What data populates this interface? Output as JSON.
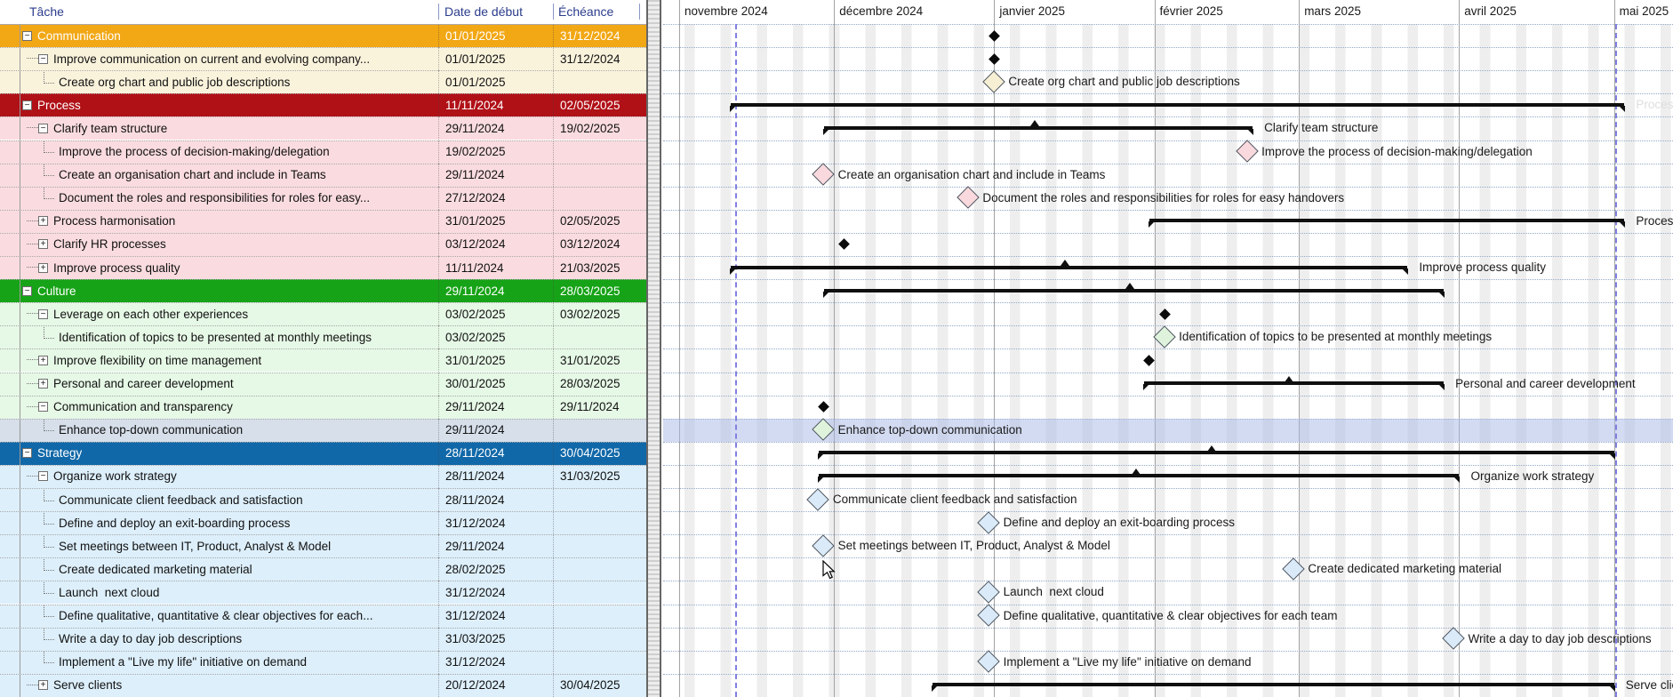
{
  "table": {
    "columns": [
      "Tâche",
      "Date de début",
      "Échéance"
    ],
    "tasks": [
      {
        "name": "Communication",
        "start": "01/01/2025",
        "due": "31/12/2024",
        "level": 0,
        "exp": "-",
        "theme": "commH",
        "bar": {
          "type": "ms",
          "color": "black"
        }
      },
      {
        "name": "Improve communication on current and evolving company...",
        "start": "01/01/2025",
        "due": "31/12/2024",
        "level": 1,
        "exp": "-",
        "theme": "comm",
        "bar": {
          "type": "ms",
          "color": "black"
        }
      },
      {
        "name": "Create org chart and public job descriptions",
        "start": "01/01/2025",
        "due": "",
        "level": 2,
        "exp": null,
        "theme": "comm",
        "bar": {
          "type": "ms",
          "color": "comm",
          "label": "Create org chart and public job descriptions"
        }
      },
      {
        "name": "Process",
        "start": "11/11/2024",
        "due": "02/05/2025",
        "level": 0,
        "exp": "-",
        "theme": "procH",
        "bar": {
          "type": "summary",
          "from": "11/11/2024",
          "to": "02/05/2025",
          "label": "Process",
          "faint": true
        }
      },
      {
        "name": "Clarify team structure",
        "start": "29/11/2024",
        "due": "19/02/2025",
        "level": 1,
        "exp": "-",
        "theme": "proc",
        "bar": {
          "type": "summary",
          "from": "29/11/2024",
          "to": "19/02/2025",
          "label": "Clarify team structure",
          "bumps": [
            1164
          ]
        }
      },
      {
        "name": "Improve the process of decision-making/delegation",
        "start": "19/02/2025",
        "due": "",
        "level": 2,
        "exp": null,
        "theme": "proc",
        "bar": {
          "type": "ms",
          "color": "proc",
          "label": "Improve the process of decision-making/delegation"
        }
      },
      {
        "name": "Create an organisation chart and include in Teams",
        "start": "29/11/2024",
        "due": "",
        "level": 2,
        "exp": null,
        "theme": "proc",
        "bar": {
          "type": "ms",
          "color": "proc",
          "label": "Create an organisation chart and include in Teams"
        }
      },
      {
        "name": "Document the roles and responsibilities for roles for easy...",
        "start": "27/12/2024",
        "due": "",
        "level": 2,
        "exp": null,
        "theme": "proc",
        "bar": {
          "type": "ms",
          "color": "proc",
          "label": "Document the roles and responsibilities for roles for easy handovers"
        }
      },
      {
        "name": "Process harmonisation",
        "start": "31/01/2025",
        "due": "02/05/2025",
        "level": 1,
        "exp": "+",
        "theme": "proc",
        "bar": {
          "type": "summary",
          "from": "31/01/2025",
          "to": "02/05/2025",
          "label": "Process harmonisation"
        }
      },
      {
        "name": "Clarify HR processes",
        "start": "03/12/2024",
        "due": "03/12/2024",
        "level": 1,
        "exp": "+",
        "theme": "proc",
        "bar": {
          "type": "ms",
          "color": "black"
        }
      },
      {
        "name": "Improve process quality",
        "start": "11/11/2024",
        "due": "21/03/2025",
        "level": 1,
        "exp": "+",
        "theme": "proc",
        "bar": {
          "type": "summary",
          "from": "11/11/2024",
          "to": "21/03/2025",
          "label": "Improve process quality",
          "bumps": [
            1198
          ]
        }
      },
      {
        "name": "Culture",
        "start": "29/11/2024",
        "due": "28/03/2025",
        "level": 0,
        "exp": "-",
        "theme": "cultH",
        "bar": {
          "type": "summary",
          "from": "29/11/2024",
          "to": "28/03/2025",
          "bumps": [
            1271
          ]
        }
      },
      {
        "name": "Leverage on each other experiences",
        "start": "03/02/2025",
        "due": "03/02/2025",
        "level": 1,
        "exp": "-",
        "theme": "cult",
        "bar": {
          "type": "ms",
          "color": "black"
        }
      },
      {
        "name": "Identification of topics to be presented at monthly meetings",
        "start": "03/02/2025",
        "due": "",
        "level": 2,
        "exp": null,
        "theme": "cult",
        "bar": {
          "type": "ms",
          "color": "cult",
          "label": "Identification of topics to be presented at monthly meetings"
        }
      },
      {
        "name": "Improve flexibility on time management",
        "start": "31/01/2025",
        "due": "31/01/2025",
        "level": 1,
        "exp": "+",
        "theme": "cult",
        "bar": {
          "type": "ms",
          "color": "black"
        }
      },
      {
        "name": "Personal and career development",
        "start": "30/01/2025",
        "due": "28/03/2025",
        "level": 1,
        "exp": "+",
        "theme": "cult",
        "bar": {
          "type": "summary",
          "from": "30/01/2025",
          "to": "28/03/2025",
          "label": "Personal and career development",
          "bumps": [
            1450
          ]
        }
      },
      {
        "name": "Communication and transparency",
        "start": "29/11/2024",
        "due": "29/11/2024",
        "level": 1,
        "exp": "-",
        "theme": "cult",
        "bar": {
          "type": "ms",
          "color": "black"
        }
      },
      {
        "name": "Enhance top-down communication",
        "start": "29/11/2024",
        "due": "",
        "level": 2,
        "exp": null,
        "theme": "cult",
        "selected": true,
        "bar": {
          "type": "ms",
          "color": "cult",
          "label": "Enhance top-down communication"
        }
      },
      {
        "name": "Strategy",
        "start": "28/11/2024",
        "due": "30/04/2025",
        "level": 0,
        "exp": "-",
        "theme": "stratH",
        "bar": {
          "type": "summary",
          "from": "28/11/2024",
          "to": "30/04/2025",
          "bumps": [
            1363
          ]
        }
      },
      {
        "name": "Organize work strategy",
        "start": "28/11/2024",
        "due": "31/03/2025",
        "level": 1,
        "exp": "-",
        "theme": "strat",
        "bar": {
          "type": "summary",
          "from": "28/11/2024",
          "to": "31/03/2025",
          "label": "Organize work strategy",
          "bumps": [
            1278
          ]
        }
      },
      {
        "name": "Communicate client feedback and satisfaction",
        "start": "28/11/2024",
        "due": "",
        "level": 2,
        "exp": null,
        "theme": "strat",
        "bar": {
          "type": "ms",
          "color": "strat",
          "label": "Communicate client feedback and satisfaction"
        }
      },
      {
        "name": "Define and deploy an exit-boarding process",
        "start": "31/12/2024",
        "due": "",
        "level": 2,
        "exp": null,
        "theme": "strat",
        "bar": {
          "type": "ms",
          "color": "strat",
          "label": "Define and deploy an exit-boarding process"
        }
      },
      {
        "name": "Set meetings between IT, Product, Analyst & Model",
        "start": "29/11/2024",
        "due": "",
        "level": 2,
        "exp": null,
        "theme": "strat",
        "bar": {
          "type": "ms",
          "color": "strat",
          "label": "Set meetings between IT, Product, Analyst & Model"
        }
      },
      {
        "name": "Create dedicated marketing material",
        "start": "28/02/2025",
        "due": "",
        "level": 2,
        "exp": null,
        "theme": "strat",
        "bar": {
          "type": "ms",
          "color": "strat",
          "label": "Create dedicated marketing material"
        }
      },
      {
        "name": "Launch  next cloud",
        "start": "31/12/2024",
        "due": "",
        "level": 2,
        "exp": null,
        "theme": "strat",
        "bar": {
          "type": "ms",
          "color": "strat",
          "label": "Launch  next cloud"
        }
      },
      {
        "name": "Define qualitative, quantitative & clear objectives for each...",
        "start": "31/12/2024",
        "due": "",
        "level": 2,
        "exp": null,
        "theme": "strat",
        "bar": {
          "type": "ms",
          "color": "strat",
          "label": "Define qualitative, quantitative & clear objectives for each team"
        }
      },
      {
        "name": "Write a day to day job descriptions",
        "start": "31/03/2025",
        "due": "",
        "level": 2,
        "exp": null,
        "theme": "strat",
        "bar": {
          "type": "ms",
          "color": "strat",
          "label": "Write a day to day job descriptions"
        }
      },
      {
        "name": "Implement a \"Live my life\" initiative on demand",
        "start": "31/12/2024",
        "due": "",
        "level": 2,
        "exp": null,
        "theme": "strat",
        "bar": {
          "type": "ms",
          "color": "strat",
          "label": "Implement a \"Live my life\" initiative on demand"
        }
      },
      {
        "name": "Serve clients",
        "start": "20/12/2024",
        "due": "30/04/2025",
        "level": 1,
        "exp": "+",
        "theme": "strat",
        "bar": {
          "type": "summary",
          "from": "20/12/2024",
          "to": "30/04/2025",
          "label": "Serve clients"
        }
      }
    ]
  },
  "chart_data": {
    "type": "table",
    "months": [
      {
        "label": "novembre 2024",
        "month": 11,
        "year": 2024,
        "days": 30
      },
      {
        "label": "décembre 2024",
        "month": 12,
        "year": 2024,
        "days": 31
      },
      {
        "label": "janvier 2025",
        "month": 1,
        "year": 2025,
        "days": 31
      },
      {
        "label": "février 2025",
        "month": 2,
        "year": 2025,
        "days": 28
      },
      {
        "label": "mars 2025",
        "month": 3,
        "year": 2025,
        "days": 31
      },
      {
        "label": "avril 2025",
        "month": 4,
        "year": 2025,
        "days": 30
      },
      {
        "label": "mai 2025",
        "month": 5,
        "year": 2025,
        "days": 31
      }
    ]
  },
  "colors": {
    "section_bg": {
      "commH": "#F2A714",
      "comm": "#FAF3DC",
      "procH": "#B01117",
      "proc": "#FADCE0",
      "cultH": "#17A317",
      "cult": "#E6F8E6",
      "stratH": "#1168A8",
      "strat": "#DDEFFB",
      "selected": "#D6DFEA"
    },
    "milestone_fill": {
      "comm": "#F7EFD4",
      "proc": "#F9D9DD",
      "cult": "#DFF3DC",
      "strat": "#DBEAF8",
      "black": "#0A0A0A"
    },
    "header_text": "#2B3C8C",
    "today_line": "#8080E0"
  }
}
